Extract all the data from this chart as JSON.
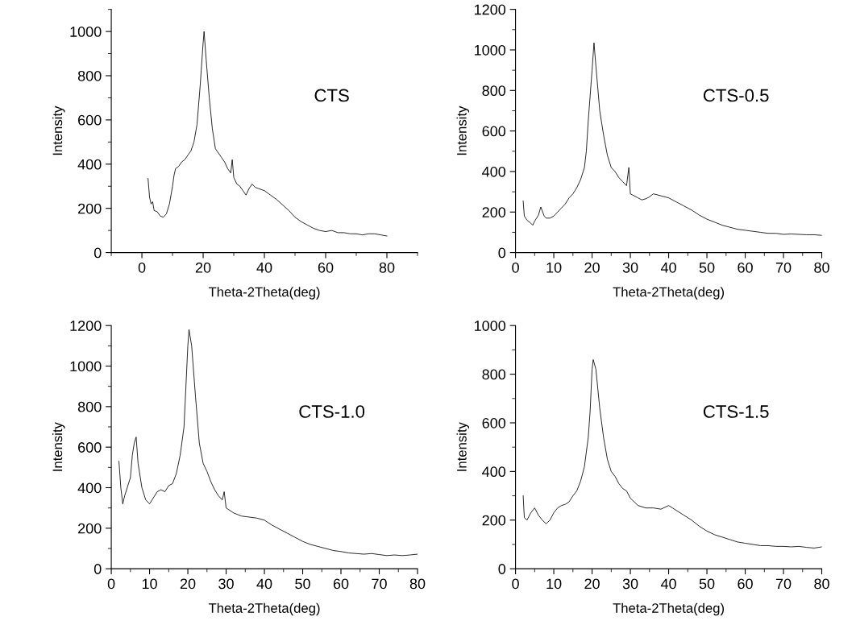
{
  "chart_data": [
    {
      "type": "line",
      "xlabel": "Theta-2Theta(deg)",
      "ylabel": "Intensity",
      "annotations": [
        "CTS"
      ],
      "xlim": [
        -10,
        90
      ],
      "ylim": [
        0,
        1100
      ],
      "xticks": [
        0,
        20,
        40,
        60,
        80
      ],
      "yticks": [
        0,
        200,
        400,
        600,
        800,
        1000
      ],
      "grid": false,
      "series": [
        {
          "color": "#000000",
          "x": [
            2,
            2.5,
            3,
            3.5,
            4,
            5,
            6,
            7,
            8,
            9,
            10,
            10.5,
            11,
            12,
            13,
            14,
            15,
            16,
            17,
            18,
            19,
            20,
            20.3,
            21,
            22,
            23,
            24,
            25,
            26,
            27,
            28,
            29,
            29.5,
            30,
            31,
            32,
            33,
            34,
            35,
            36,
            37,
            38,
            40,
            42,
            44,
            46,
            48,
            50,
            52,
            54,
            56,
            58,
            60,
            62,
            64,
            66,
            68,
            70,
            72,
            74,
            76,
            78,
            80
          ],
          "values": [
            335,
            250,
            220,
            230,
            190,
            185,
            165,
            160,
            175,
            220,
            300,
            350,
            380,
            390,
            410,
            420,
            440,
            460,
            500,
            580,
            750,
            950,
            1000,
            870,
            700,
            560,
            470,
            450,
            430,
            410,
            380,
            360,
            420,
            340,
            310,
            300,
            280,
            260,
            290,
            310,
            295,
            290,
            280,
            260,
            240,
            215,
            190,
            160,
            140,
            125,
            110,
            100,
            95,
            100,
            90,
            90,
            85,
            85,
            80,
            85,
            85,
            80,
            75
          ]
        }
      ]
    },
    {
      "type": "line",
      "xlabel": "Theta-2Theta(deg)",
      "ylabel": "Intensity",
      "annotations": [
        "CTS-0.5"
      ],
      "xlim": [
        0,
        80
      ],
      "ylim": [
        0,
        1200
      ],
      "xticks": [
        0,
        10,
        20,
        30,
        40,
        50,
        60,
        70,
        80
      ],
      "yticks": [
        0,
        200,
        400,
        600,
        800,
        1000,
        1200
      ],
      "grid": false,
      "series": [
        {
          "color": "#000000",
          "x": [
            2,
            2.3,
            3,
            4,
            4.5,
            5,
            6,
            6.6,
            7.5,
            8,
            9,
            10,
            11,
            12,
            13,
            14,
            15,
            16,
            17,
            18,
            18.5,
            19,
            20,
            20.5,
            21,
            22,
            23,
            24,
            25,
            26,
            27,
            28,
            29,
            29.6,
            30,
            31,
            32,
            33,
            34,
            35,
            36,
            38,
            40,
            42,
            44,
            46,
            48,
            50,
            52,
            54,
            56,
            58,
            60,
            62,
            64,
            66,
            68,
            70,
            72,
            74,
            76,
            78,
            80
          ],
          "values": [
            255,
            180,
            160,
            145,
            135,
            155,
            185,
            225,
            180,
            170,
            170,
            180,
            200,
            220,
            240,
            270,
            290,
            320,
            360,
            420,
            500,
            650,
            900,
            1035,
            920,
            700,
            580,
            480,
            420,
            400,
            370,
            350,
            330,
            420,
            290,
            280,
            270,
            260,
            265,
            275,
            290,
            280,
            270,
            250,
            230,
            210,
            185,
            165,
            150,
            135,
            125,
            115,
            110,
            105,
            100,
            95,
            95,
            90,
            92,
            90,
            88,
            88,
            85
          ]
        }
      ]
    },
    {
      "type": "line",
      "xlabel": "Theta-2Theta(deg)",
      "ylabel": "Intensity",
      "annotations": [
        "CTS-1.0"
      ],
      "xlim": [
        0,
        80
      ],
      "ylim": [
        0,
        1200
      ],
      "xticks": [
        0,
        10,
        20,
        30,
        40,
        50,
        60,
        70,
        80
      ],
      "yticks": [
        0,
        200,
        400,
        600,
        800,
        1000,
        1200
      ],
      "grid": false,
      "series": [
        {
          "color": "#000000",
          "x": [
            2,
            2.5,
            3,
            3.5,
            4,
            5,
            5.5,
            6,
            6.5,
            7,
            8,
            9,
            10,
            11,
            12,
            13,
            14,
            15,
            16,
            17,
            18,
            19,
            20,
            20.3,
            21,
            22,
            23,
            24,
            25,
            26,
            27,
            28,
            29,
            29.5,
            30,
            32,
            34,
            36,
            38,
            40,
            42,
            44,
            46,
            48,
            50,
            52,
            54,
            56,
            58,
            60,
            62,
            64,
            66,
            68,
            70,
            72,
            74,
            76,
            78,
            80
          ],
          "values": [
            530,
            400,
            320,
            360,
            390,
            450,
            560,
            620,
            650,
            520,
            400,
            340,
            320,
            350,
            380,
            390,
            380,
            410,
            420,
            470,
            560,
            700,
            1100,
            1180,
            1100,
            850,
            620,
            520,
            480,
            430,
            390,
            360,
            340,
            380,
            300,
            275,
            260,
            255,
            250,
            240,
            215,
            195,
            175,
            155,
            135,
            120,
            110,
            100,
            90,
            85,
            78,
            75,
            72,
            75,
            70,
            65,
            68,
            65,
            68,
            72
          ]
        }
      ]
    },
    {
      "type": "line",
      "xlabel": "Theta-2Theta(deg)",
      "ylabel": "Intensity",
      "annotations": [
        "CTS-1.5"
      ],
      "xlim": [
        0,
        80
      ],
      "ylim": [
        0,
        1000
      ],
      "xticks": [
        0,
        10,
        20,
        30,
        40,
        50,
        60,
        70,
        80
      ],
      "yticks": [
        0,
        200,
        400,
        600,
        800,
        1000
      ],
      "grid": false,
      "series": [
        {
          "color": "#000000",
          "x": [
            2,
            2.3,
            3,
            4,
            5,
            6,
            7,
            8,
            9,
            10,
            11,
            12,
            13,
            14,
            15,
            16,
            17,
            18,
            19,
            19.5,
            20,
            20.3,
            21,
            22,
            23,
            24,
            25,
            26,
            27,
            28,
            29,
            30,
            32,
            34,
            36,
            38,
            40,
            41,
            42,
            44,
            46,
            48,
            50,
            52,
            54,
            56,
            58,
            60,
            62,
            64,
            66,
            68,
            70,
            72,
            74,
            76,
            78,
            80
          ],
          "values": [
            300,
            210,
            200,
            230,
            250,
            220,
            200,
            185,
            200,
            230,
            250,
            260,
            265,
            275,
            300,
            320,
            360,
            420,
            540,
            650,
            820,
            860,
            820,
            660,
            540,
            450,
            400,
            380,
            350,
            330,
            320,
            290,
            260,
            250,
            250,
            245,
            260,
            250,
            240,
            220,
            200,
            175,
            155,
            140,
            130,
            120,
            110,
            105,
            100,
            95,
            95,
            92,
            92,
            90,
            92,
            88,
            85,
            90
          ]
        }
      ]
    }
  ]
}
